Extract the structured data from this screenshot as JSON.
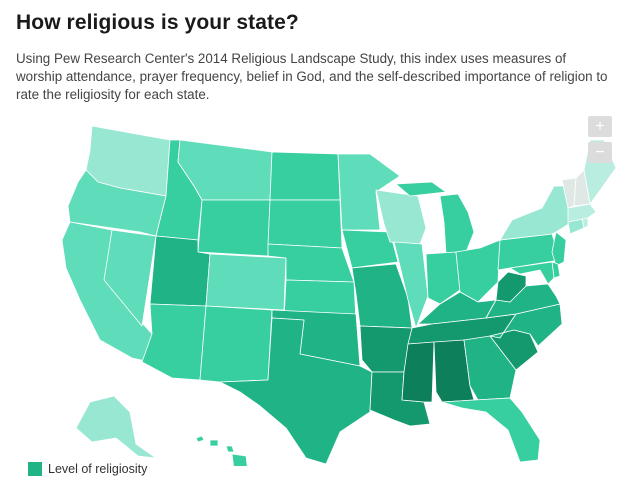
{
  "header": {
    "title": "How religious is your state?",
    "subtitle": "Using Pew Research Center's 2014 Religious Landscape Study, this index uses measures of worship attendance, prayer frequency, belief in God, and the self-described importance of religion to rate the religiosity for each state."
  },
  "zoom": {
    "in_label": "+",
    "out_label": "−"
  },
  "legend": {
    "label": "Level of religiosity",
    "color": "#1fb386"
  },
  "colors": {
    "1": "#dfe8e4",
    "2": "#b9ede0",
    "3": "#98e7d2",
    "4": "#5fdcb9",
    "5": "#37cf9f",
    "6": "#1fb386",
    "7": "#14996f",
    "8": "#0d7f5a"
  },
  "states": [
    {
      "id": "WA",
      "level": 3
    },
    {
      "id": "OR",
      "level": 4
    },
    {
      "id": "CA",
      "level": 4
    },
    {
      "id": "NV",
      "level": 4
    },
    {
      "id": "ID",
      "level": 5
    },
    {
      "id": "MT",
      "level": 4
    },
    {
      "id": "WY",
      "level": 5
    },
    {
      "id": "UT",
      "level": 6
    },
    {
      "id": "AZ",
      "level": 5
    },
    {
      "id": "CO",
      "level": 4
    },
    {
      "id": "NM",
      "level": 5
    },
    {
      "id": "ND",
      "level": 5
    },
    {
      "id": "SD",
      "level": 5
    },
    {
      "id": "NE",
      "level": 5
    },
    {
      "id": "KS",
      "level": 5
    },
    {
      "id": "OK",
      "level": 6
    },
    {
      "id": "TX",
      "level": 6
    },
    {
      "id": "MN",
      "level": 4
    },
    {
      "id": "IA",
      "level": 5
    },
    {
      "id": "MO",
      "level": 6
    },
    {
      "id": "AR",
      "level": 7
    },
    {
      "id": "LA",
      "level": 7
    },
    {
      "id": "WI",
      "level": 3
    },
    {
      "id": "IL",
      "level": 4
    },
    {
      "id": "MI",
      "level": 5
    },
    {
      "id": "IN",
      "level": 5
    },
    {
      "id": "OH",
      "level": 5
    },
    {
      "id": "KY",
      "level": 6
    },
    {
      "id": "TN",
      "level": 7
    },
    {
      "id": "MS",
      "level": 8
    },
    {
      "id": "AL",
      "level": 8
    },
    {
      "id": "GA",
      "level": 6
    },
    {
      "id": "FL",
      "level": 5
    },
    {
      "id": "SC",
      "level": 7
    },
    {
      "id": "NC",
      "level": 6
    },
    {
      "id": "VA",
      "level": 6
    },
    {
      "id": "WV",
      "level": 7
    },
    {
      "id": "PA",
      "level": 5
    },
    {
      "id": "NY",
      "level": 3
    },
    {
      "id": "NJ",
      "level": 5
    },
    {
      "id": "DE",
      "level": 5
    },
    {
      "id": "MD",
      "level": 5
    },
    {
      "id": "CT",
      "level": 3
    },
    {
      "id": "RI",
      "level": 2
    },
    {
      "id": "MA",
      "level": 2
    },
    {
      "id": "VT",
      "level": 1
    },
    {
      "id": "NH",
      "level": 1
    },
    {
      "id": "ME",
      "level": 2
    },
    {
      "id": "AK",
      "level": 3
    },
    {
      "id": "HI",
      "level": 5
    }
  ]
}
